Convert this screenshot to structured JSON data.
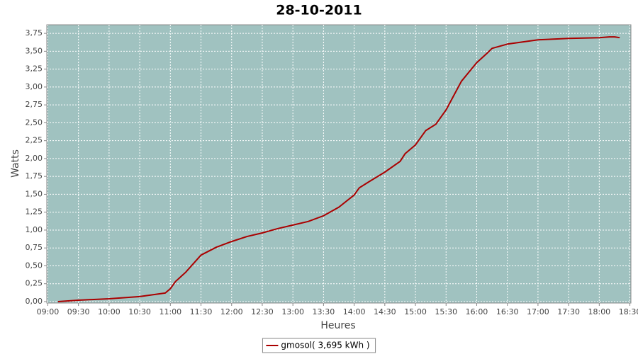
{
  "chart_data": {
    "type": "line",
    "title": "28-10-2011",
    "x_label": "Heures",
    "y_label": "Watts",
    "x": [
      "09:10",
      "09:30",
      "10:00",
      "10:30",
      "10:45",
      "10:55",
      "11:00",
      "11:05",
      "11:15",
      "11:30",
      "11:45",
      "12:00",
      "12:15",
      "12:30",
      "12:45",
      "13:00",
      "13:15",
      "13:30",
      "13:45",
      "14:00",
      "14:05",
      "14:15",
      "14:30",
      "14:45",
      "14:50",
      "15:00",
      "15:10",
      "15:20",
      "15:30",
      "15:45",
      "16:00",
      "16:10",
      "16:15",
      "16:30",
      "17:00",
      "17:30",
      "18:00",
      "18:10",
      "18:15",
      "18:20"
    ],
    "series": [
      {
        "name": "gmosol( 3,695 kWh )",
        "color": "#aa0000",
        "values": [
          0.0,
          0.02,
          0.04,
          0.07,
          0.1,
          0.12,
          0.18,
          0.28,
          0.41,
          0.65,
          0.76,
          0.84,
          0.91,
          0.96,
          1.02,
          1.07,
          1.12,
          1.2,
          1.32,
          1.49,
          1.59,
          1.68,
          1.81,
          1.96,
          2.07,
          2.19,
          2.39,
          2.48,
          2.68,
          3.08,
          3.34,
          3.47,
          3.54,
          3.6,
          3.66,
          3.68,
          3.69,
          3.7,
          3.7,
          3.69
        ]
      }
    ],
    "xlim": [
      "08:59",
      "18:31"
    ],
    "xticks": [
      "09:00",
      "09:30",
      "10:00",
      "10:30",
      "11:00",
      "11:30",
      "12:00",
      "12:30",
      "13:00",
      "13:30",
      "14:00",
      "14:30",
      "15:00",
      "15:30",
      "16:00",
      "16:30",
      "17:00",
      "17:30",
      "18:00",
      "18:30"
    ],
    "ylim": [
      -0.02,
      3.87
    ],
    "yticks": [
      {
        "value": 0,
        "label": "0,00"
      },
      {
        "value": 0.25,
        "label": "0,25"
      },
      {
        "value": 0.5,
        "label": "0,50"
      },
      {
        "value": 0.75,
        "label": "0,75"
      },
      {
        "value": 1,
        "label": "1,00"
      },
      {
        "value": 1.25,
        "label": "1,25"
      },
      {
        "value": 1.5,
        "label": "1,50"
      },
      {
        "value": 1.75,
        "label": "1,75"
      },
      {
        "value": 2,
        "label": "2,00"
      },
      {
        "value": 2.25,
        "label": "2,25"
      },
      {
        "value": 2.5,
        "label": "2,50"
      },
      {
        "value": 2.75,
        "label": "2,75"
      },
      {
        "value": 3,
        "label": "3,00"
      },
      {
        "value": 3.25,
        "label": "3,25"
      },
      {
        "value": 3.5,
        "label": "3,50"
      },
      {
        "value": 3.75,
        "label": "3,75"
      }
    ],
    "grid": true,
    "plot_background": "#a0c2c0",
    "legend": "bottom"
  }
}
